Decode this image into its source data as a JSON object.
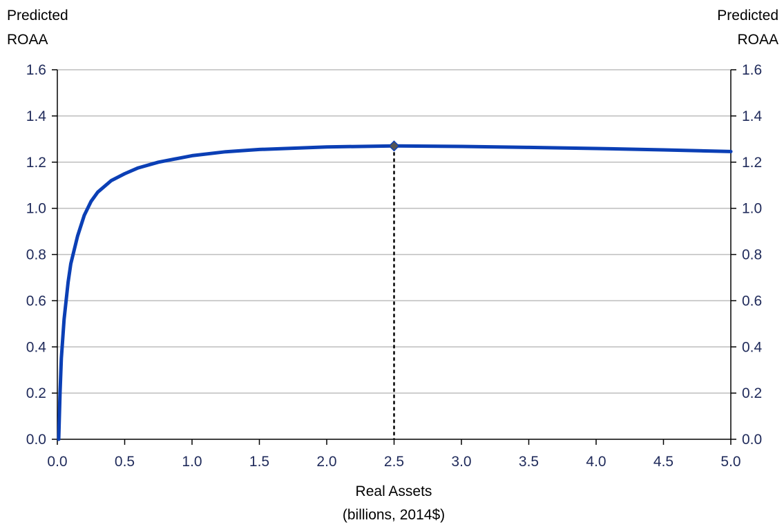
{
  "chart_data": {
    "type": "line",
    "y_axis_left_label": [
      "Predicted",
      "ROAA"
    ],
    "y_axis_right_label": [
      "Predicted",
      "ROAA"
    ],
    "x_axis_label": [
      "Real Assets",
      "(billions, 2014$)"
    ],
    "xlim": [
      0,
      5
    ],
    "ylim": [
      0,
      1.6
    ],
    "x_ticks": [
      "0.0",
      "0.5",
      "1.0",
      "1.5",
      "2.0",
      "2.5",
      "3.0",
      "3.5",
      "4.0",
      "4.5",
      "5.0"
    ],
    "y_ticks": [
      "0.0",
      "0.2",
      "0.4",
      "0.6",
      "0.8",
      "1.0",
      "1.2",
      "1.4",
      "1.6"
    ],
    "grid": "horizontal",
    "series": [
      {
        "color": "#0b3fb5",
        "x": [
          0.01,
          0.02,
          0.03,
          0.05,
          0.08,
          0.1,
          0.15,
          0.2,
          0.25,
          0.3,
          0.4,
          0.5,
          0.6,
          0.75,
          1.0,
          1.25,
          1.5,
          2.0,
          2.5,
          3.0,
          3.5,
          4.0,
          4.5,
          5.0
        ],
        "y": [
          0.0,
          0.2,
          0.35,
          0.52,
          0.68,
          0.76,
          0.88,
          0.97,
          1.03,
          1.07,
          1.12,
          1.15,
          1.175,
          1.2,
          1.228,
          1.245,
          1.255,
          1.266,
          1.27,
          1.268,
          1.264,
          1.259,
          1.253,
          1.246
        ]
      }
    ],
    "marker": {
      "x": 2.5,
      "y": 1.27,
      "color": "#555555"
    },
    "reference_line": {
      "x": 2.5,
      "style": "dashed",
      "color": "#000000"
    }
  }
}
